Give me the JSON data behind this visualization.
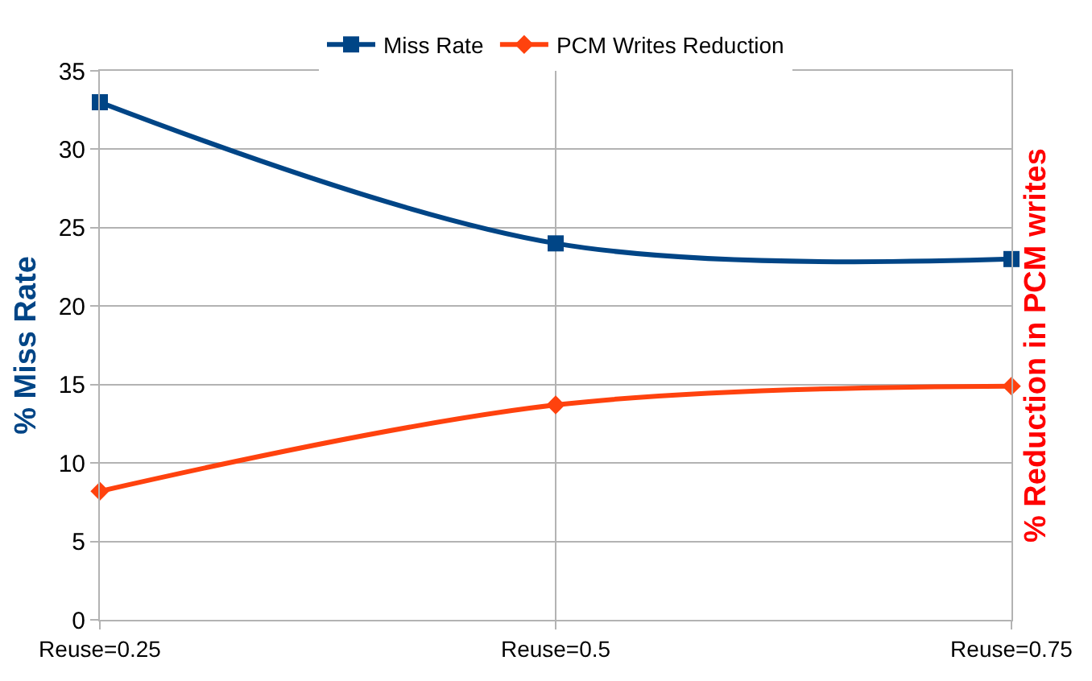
{
  "chart_data": {
    "type": "line",
    "categories": [
      "Reuse=0.25",
      "Reuse=0.5",
      "Reuse=0.75"
    ],
    "ylabel": "% Miss Rate",
    "y2label": "% Reduction in PCM writes",
    "ylim": [
      0,
      35
    ],
    "yticks": [
      0,
      5,
      10,
      15,
      20,
      25,
      30,
      35
    ],
    "grid": true,
    "legend": "top",
    "series": [
      {
        "name": "Miss Rate",
        "color": "#004586",
        "values": [
          33,
          24,
          23
        ],
        "marker": "square"
      },
      {
        "name": "PCM Writes Reduction",
        "color": "#ff420e",
        "values": [
          8.2,
          13.7,
          14.9
        ],
        "marker": "diamond"
      }
    ]
  }
}
